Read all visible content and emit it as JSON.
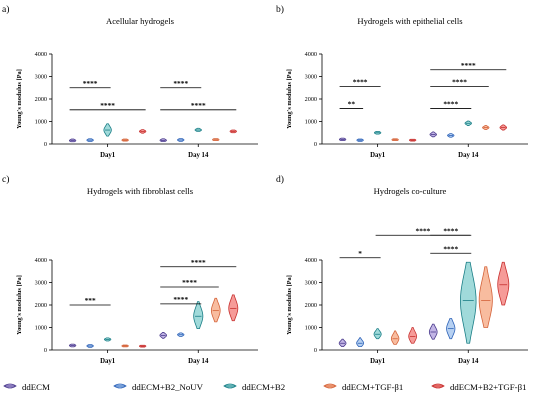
{
  "colors": {
    "ddECM": {
      "fill": "#b7a8e0",
      "stroke": "#4a3a8c"
    },
    "ddECM+B2_NoUV": {
      "fill": "#a9c8ef",
      "stroke": "#2e63b8"
    },
    "ddECM+B2": {
      "fill": "#8fd3d3",
      "stroke": "#1a7e86"
    },
    "ddECM+TGF-β1": {
      "fill": "#f7b08e",
      "stroke": "#d4633a"
    },
    "ddECM+B2+TGF-β1": {
      "fill": "#f48a86",
      "stroke": "#c7302f"
    }
  },
  "legend": [
    "ddECM",
    "ddECM+B2_NoUV",
    "ddECM+B2",
    "ddECM+TGF-β1",
    "ddECM+B2+TGF-β1"
  ],
  "chart_data": [
    {
      "panel": "a)",
      "type": "violin",
      "title": "Acellular hydrogels",
      "ylabel": "Young's modulus [Pa]",
      "ylim": [
        0,
        4000
      ],
      "yticks": [
        "0",
        "1000",
        "2000",
        "3000",
        "4000"
      ],
      "categories": [
        "Day1",
        "Day 14"
      ],
      "series": [
        {
          "name": "ddECM",
          "values": [
            {
              "median": 150,
              "min": 100,
              "max": 220
            },
            {
              "median": 160,
              "min": 110,
              "max": 230
            }
          ]
        },
        {
          "name": "ddECM+B2_NoUV",
          "values": [
            {
              "median": 170,
              "min": 110,
              "max": 230
            },
            {
              "median": 180,
              "min": 120,
              "max": 240
            }
          ]
        },
        {
          "name": "ddECM+B2",
          "values": [
            {
              "median": 620,
              "min": 350,
              "max": 900
            },
            {
              "median": 620,
              "min": 560,
              "max": 700
            }
          ]
        },
        {
          "name": "ddECM+TGF-β1",
          "values": [
            {
              "median": 170,
              "min": 130,
              "max": 220
            },
            {
              "median": 190,
              "min": 150,
              "max": 240
            }
          ]
        },
        {
          "name": "ddECM+B2+TGF-β1",
          "values": [
            {
              "median": 560,
              "min": 480,
              "max": 640
            },
            {
              "median": 560,
              "min": 500,
              "max": 620
            }
          ]
        }
      ],
      "significance": [
        {
          "label": "****",
          "group": 0,
          "from": 0,
          "to": 2,
          "y": 2500
        },
        {
          "label": "****",
          "group": 0,
          "from": 0,
          "to": 4,
          "y": 1520
        },
        {
          "label": "****",
          "group": 1,
          "from": 0,
          "to": 2,
          "y": 2500
        },
        {
          "label": "****",
          "group": 1,
          "from": 0,
          "to": 4,
          "y": 1520
        }
      ]
    },
    {
      "panel": "b)",
      "type": "violin",
      "title": "Hydrogels with epithelial cells",
      "ylabel": "Young's modulus [Pa]",
      "ylim": [
        0,
        4000
      ],
      "yticks": [
        "0",
        "1000",
        "2000",
        "3000",
        "4000"
      ],
      "categories": [
        "Day1",
        "Day 14"
      ],
      "series": [
        {
          "name": "ddECM",
          "values": [
            {
              "median": 200,
              "min": 150,
              "max": 260
            },
            {
              "median": 420,
              "min": 320,
              "max": 540
            }
          ]
        },
        {
          "name": "ddECM+B2_NoUV",
          "values": [
            {
              "median": 170,
              "min": 120,
              "max": 220
            },
            {
              "median": 380,
              "min": 300,
              "max": 460
            }
          ]
        },
        {
          "name": "ddECM+B2",
          "values": [
            {
              "median": 500,
              "min": 440,
              "max": 560
            },
            {
              "median": 920,
              "min": 820,
              "max": 1020
            }
          ]
        },
        {
          "name": "ddECM+TGF-β1",
          "values": [
            {
              "median": 190,
              "min": 150,
              "max": 230
            },
            {
              "median": 730,
              "min": 640,
              "max": 820
            }
          ]
        },
        {
          "name": "ddECM+B2+TGF-β1",
          "values": [
            {
              "median": 170,
              "min": 130,
              "max": 210
            },
            {
              "median": 730,
              "min": 620,
              "max": 850
            }
          ]
        }
      ],
      "significance": [
        {
          "label": "****",
          "group": 0,
          "from": 0,
          "to": 2,
          "y": 2550
        },
        {
          "label": "**",
          "group": 0,
          "from": 0,
          "to": 1,
          "y": 1580
        },
        {
          "label": "****",
          "group": 1,
          "from": 0,
          "to": 4,
          "y": 3300
        },
        {
          "label": "****",
          "group": 1,
          "from": 0,
          "to": 3,
          "y": 2550
        },
        {
          "label": "****",
          "group": 1,
          "from": 0,
          "to": 2,
          "y": 1580
        }
      ]
    },
    {
      "panel": "c)",
      "type": "violin",
      "title": "Hydrogels with fibroblast cells",
      "ylabel": "Young's modulus [Pa]",
      "ylim": [
        0,
        4000
      ],
      "yticks": [
        "0",
        "1000",
        "2000",
        "3000",
        "4000"
      ],
      "categories": [
        "Day1",
        "Day 14"
      ],
      "series": [
        {
          "name": "ddECM",
          "values": [
            {
              "median": 200,
              "min": 140,
              "max": 260
            },
            {
              "median": 650,
              "min": 520,
              "max": 780
            }
          ]
        },
        {
          "name": "ddECM+B2_NoUV",
          "values": [
            {
              "median": 180,
              "min": 120,
              "max": 240
            },
            {
              "median": 680,
              "min": 600,
              "max": 760
            }
          ]
        },
        {
          "name": "ddECM+B2",
          "values": [
            {
              "median": 470,
              "min": 400,
              "max": 540
            },
            {
              "median": 1500,
              "min": 950,
              "max": 2150
            }
          ]
        },
        {
          "name": "ddECM+TGF-β1",
          "values": [
            {
              "median": 180,
              "min": 140,
              "max": 220
            },
            {
              "median": 1750,
              "min": 1250,
              "max": 2300
            }
          ]
        },
        {
          "name": "ddECM+B2+TGF-β1",
          "values": [
            {
              "median": 170,
              "min": 130,
              "max": 210
            },
            {
              "median": 1850,
              "min": 1300,
              "max": 2450
            }
          ]
        }
      ],
      "significance": [
        {
          "label": "***",
          "group": 0,
          "from": 0,
          "to": 2,
          "y": 2000
        },
        {
          "label": "****",
          "group": 1,
          "from": 0,
          "to": 4,
          "y": 3700
        },
        {
          "label": "****",
          "group": 1,
          "from": 0,
          "to": 3,
          "y": 2800
        },
        {
          "label": "****",
          "group": 1,
          "from": 0,
          "to": 2,
          "y": 2050
        }
      ]
    },
    {
      "panel": "d)",
      "type": "violin",
      "title": "Hydrogels co-culture",
      "ylabel": "Young's modulus [Pa]",
      "ylim": [
        0,
        4000
      ],
      "yticks": [
        "0",
        "1000",
        "2000",
        "3000",
        "4000"
      ],
      "categories": [
        "Day1",
        "Day 14"
      ],
      "series": [
        {
          "name": "ddECM",
          "values": [
            {
              "median": 300,
              "min": 150,
              "max": 480
            },
            {
              "median": 800,
              "min": 480,
              "max": 1150
            }
          ]
        },
        {
          "name": "ddECM+B2_NoUV",
          "values": [
            {
              "median": 300,
              "min": 150,
              "max": 550
            },
            {
              "median": 950,
              "min": 500,
              "max": 1400
            }
          ]
        },
        {
          "name": "ddECM+B2",
          "values": [
            {
              "median": 700,
              "min": 500,
              "max": 950
            },
            {
              "median": 2200,
              "min": 300,
              "max": 3900
            }
          ]
        },
        {
          "name": "ddECM+TGF-β1",
          "values": [
            {
              "median": 500,
              "min": 250,
              "max": 850
            },
            {
              "median": 2200,
              "min": 1000,
              "max": 3700
            }
          ]
        },
        {
          "name": "ddECM+B2+TGF-β1",
          "values": [
            {
              "median": 600,
              "min": 300,
              "max": 1000
            },
            {
              "median": 2900,
              "min": 2000,
              "max": 3900
            }
          ]
        }
      ],
      "significance": [
        {
          "label": "****",
          "group": null,
          "fromGroup": 0,
          "toGroup": 1,
          "from": 2,
          "to": 2,
          "y": 5100
        },
        {
          "label": "*",
          "group": 0,
          "from": 0,
          "to": 2,
          "y": 4100
        },
        {
          "label": "****",
          "group": 1,
          "from": 0,
          "to": 2,
          "y": 5100
        },
        {
          "label": "****",
          "group": 1,
          "from": 0,
          "to": 2,
          "y": 4300
        }
      ]
    }
  ]
}
